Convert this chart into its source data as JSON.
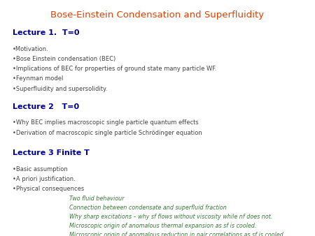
{
  "title": "Bose-Einstein Condensation and Superfluidity",
  "title_color": "#E84000",
  "title_fontsize": 9.5,
  "background_color": "#ffffff",
  "lecture1_heading": "Lecture 1.  T=0",
  "lecture1_heading_color": "#00008B",
  "lecture1_heading_fontsize": 8.0,
  "lecture1_items": [
    "•Motivation.",
    "•Bose Einstein condensation (BEC)",
    "•Implications of BEC for properties of ground state many particle WF.",
    "•Feynman model",
    "•Superfluidity and supersolidity."
  ],
  "lecture1_item_color": "#444444",
  "lecture1_item_fontsize": 6.0,
  "lecture2_heading": "Lecture 2   T=0",
  "lecture2_heading_color": "#00008B",
  "lecture2_heading_fontsize": 8.0,
  "lecture2_items": [
    "•Why BEC implies macroscopic single particle quantum effects",
    "•Derivation of macroscopic single particle Schrödinger equation"
  ],
  "lecture2_item_color": "#444444",
  "lecture2_item_fontsize": 6.0,
  "lecture3_heading": "Lecture 3 Finite T",
  "lecture3_heading_color": "#00008B",
  "lecture3_heading_fontsize": 8.0,
  "lecture3_items": [
    "•Basic assumption",
    "•A priori justification.",
    "•Physical consequences"
  ],
  "lecture3_item_color": "#444444",
  "lecture3_item_fontsize": 6.0,
  "lecture3_sub_items": [
    "Two fluid behaviour",
    "Connection between condensate and superfluid fraction",
    "Why sharp excitations – why sf flows without viscosity while nf does not.",
    "Microscopic origin of anomalous thermal expansion as sf is cooled.",
    "Microscopic origin of anomalous reduction in pair correlations as sf is cooled."
  ],
  "lecture3_sub_item_color": "#3A7A3A",
  "lecture3_sub_item_fontsize": 5.8,
  "lecture3_sub_indent": 0.22
}
